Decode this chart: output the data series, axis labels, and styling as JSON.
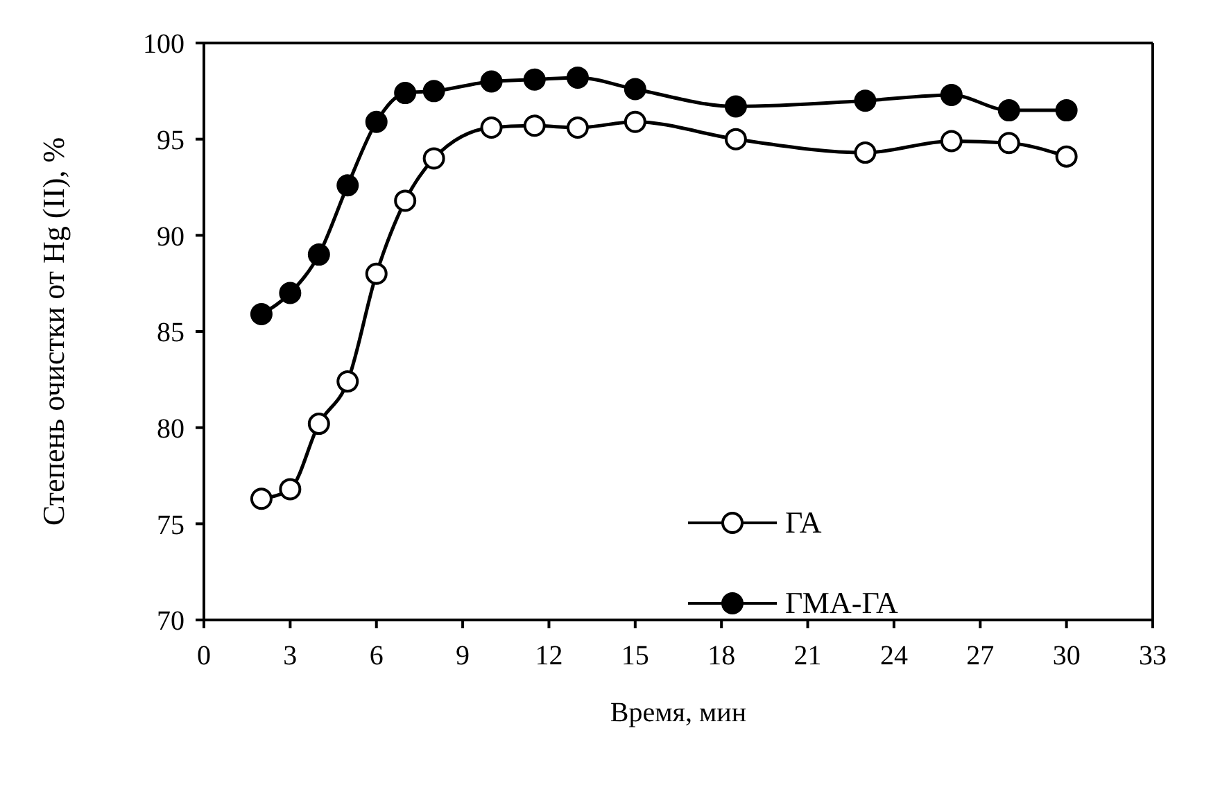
{
  "chart_data": {
    "type": "line",
    "xlabel": "Время, мин",
    "ylabel": "Степень очистки от Hg (II), %",
    "x": [
      2,
      3,
      4,
      5,
      6,
      7,
      8,
      10,
      11.5,
      13,
      15,
      18.5,
      23,
      26,
      28,
      30
    ],
    "series": [
      {
        "name": "ГА",
        "color": "#000000",
        "values": [
          76.3,
          76.8,
          80.2,
          82.4,
          88,
          91.8,
          94,
          95.6,
          95.7,
          95.6,
          95.9,
          95,
          94.3,
          94.9,
          94.8,
          94.1
        ]
      },
      {
        "name": "ГМА-ГА",
        "color": "#000000",
        "values": [
          85.9,
          87,
          89,
          92.6,
          95.9,
          97.4,
          97.5,
          98,
          98.1,
          98.2,
          97.6,
          96.7,
          97,
          97.3,
          96.5,
          96.5
        ]
      }
    ],
    "xlim": [
      0,
      33
    ],
    "xticks": [
      0,
      3,
      6,
      9,
      12,
      15,
      18,
      21,
      24,
      27,
      30,
      33
    ],
    "ylim": [
      70,
      100
    ],
    "yticks": [
      70,
      75,
      80,
      85,
      90,
      95,
      100
    ],
    "grid": false,
    "legend": "bottom right",
    "marker": "circle",
    "line_style": "solid"
  }
}
